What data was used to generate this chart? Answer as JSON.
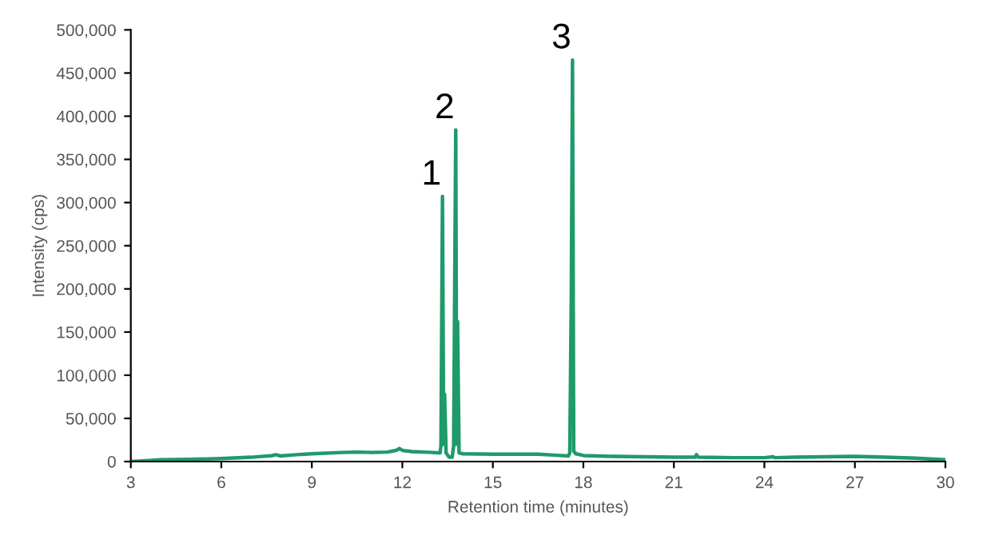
{
  "chart_data": {
    "type": "line",
    "xlabel": "Retention time (minutes)",
    "ylabel": "Intensity (cps)",
    "x": [
      3,
      3.5,
      4,
      5,
      6,
      7,
      7.7,
      7.8,
      7.95,
      8.5,
      9,
      10,
      10.5,
      11,
      11.5,
      11.8,
      11.9,
      12,
      12.3,
      13,
      13.25,
      13.28,
      13.33,
      13.37,
      13.4,
      13.45,
      13.55,
      13.65,
      13.7,
      13.77,
      13.8,
      13.83,
      13.88,
      14,
      15,
      16,
      16.5,
      17,
      17.5,
      17.55,
      17.6,
      17.64,
      17.68,
      17.75,
      18,
      19,
      20,
      21,
      21.7,
      21.75,
      21.8,
      23,
      24,
      24.3,
      24.35,
      25,
      26,
      27,
      28,
      29,
      30
    ],
    "series": [
      {
        "color": "#1f9a6a",
        "values": [
          0,
          1000,
          2000,
          2500,
          3500,
          5000,
          7000,
          8000,
          6500,
          8000,
          9000,
          10500,
          11000,
          10500,
          11000,
          13000,
          15000,
          13000,
          11500,
          10500,
          10000,
          18000,
          307000,
          20000,
          78000,
          10000,
          5000,
          5000,
          18000,
          384000,
          20000,
          162000,
          10000,
          9000,
          8500,
          8500,
          8500,
          7500,
          6500,
          10000,
          193000,
          465000,
          12000,
          9000,
          7000,
          6000,
          5500,
          5000,
          5000,
          8000,
          5000,
          4500,
          4500,
          5500,
          4500,
          5000,
          5500,
          6000,
          5000,
          4000,
          2000
        ]
      }
    ],
    "xlim": [
      3,
      30
    ],
    "xticks": [
      3,
      6,
      9,
      12,
      15,
      18,
      21,
      24,
      27,
      30
    ],
    "ylim": [
      0,
      500000
    ],
    "yticks": [
      0,
      {
        "value": 50000,
        "label": "50,000"
      },
      {
        "value": 100000,
        "label": "100,000"
      },
      {
        "value": 150000,
        "label": "150,000"
      },
      {
        "value": 200000,
        "label": "200,000"
      },
      {
        "value": 250000,
        "label": "250,000"
      },
      {
        "value": 300000,
        "label": "300,000"
      },
      {
        "value": 350000,
        "label": "350,000"
      },
      {
        "value": 400000,
        "label": "400,000"
      },
      {
        "value": 450000,
        "label": "450,000"
      },
      {
        "value": 500000,
        "label": "500,000"
      }
    ],
    "annotations": [
      {
        "text": "1",
        "x": 13.33,
        "y": 307000
      },
      {
        "text": "2",
        "x": 13.77,
        "y": 384000
      },
      {
        "text": "3",
        "x": 17.64,
        "y": 465000
      }
    ],
    "grid": false,
    "legend": false,
    "marker": "none",
    "line_style": "solid"
  }
}
